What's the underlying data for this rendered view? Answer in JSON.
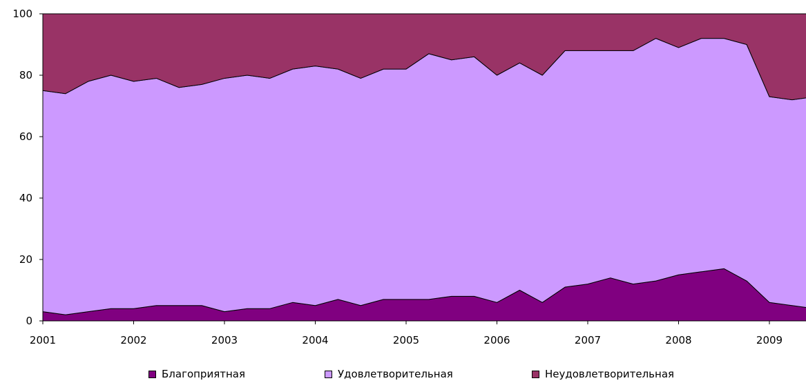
{
  "chart_data": {
    "type": "area",
    "stacked": true,
    "ylim": [
      0,
      100
    ],
    "y_ticks": [
      "0",
      "20",
      "40",
      "60",
      "80",
      "100"
    ],
    "x_ticks": [
      "2001",
      "2002",
      "2003",
      "2004",
      "2005",
      "2006",
      "2007",
      "2008",
      "2009"
    ],
    "points_per_year": 4,
    "x": [
      2001.0,
      2001.25,
      2001.5,
      2001.75,
      2002.0,
      2002.25,
      2002.5,
      2002.75,
      2003.0,
      2003.25,
      2003.5,
      2003.75,
      2004.0,
      2004.25,
      2004.5,
      2004.75,
      2005.0,
      2005.25,
      2005.5,
      2005.75,
      2006.0,
      2006.25,
      2006.5,
      2006.75,
      2007.0,
      2007.25,
      2007.5,
      2007.75,
      2008.0,
      2008.25,
      2008.5,
      2008.75,
      2009.0,
      2009.25,
      2009.5
    ],
    "series": [
      {
        "name": "Благоприятная",
        "color": "#800080",
        "values": [
          3,
          2,
          3,
          4,
          4,
          5,
          5,
          5,
          3,
          4,
          4,
          6,
          5,
          7,
          5,
          7,
          7,
          7,
          8,
          8,
          6,
          10,
          6,
          11,
          12,
          14,
          12,
          13,
          15,
          16,
          17,
          13,
          6,
          5,
          4
        ]
      },
      {
        "name": "Удовлетворительная",
        "color": "#cc99ff",
        "values": [
          72,
          72,
          75,
          76,
          74,
          74,
          71,
          72,
          76,
          76,
          75,
          76,
          78,
          75,
          74,
          75,
          75,
          80,
          77,
          78,
          74,
          74,
          74,
          77,
          76,
          74,
          76,
          79,
          74,
          76,
          75,
          77,
          67,
          67,
          69
        ]
      },
      {
        "name": "Неудовлетворительная",
        "color": "#993366",
        "values": [
          25,
          26,
          22,
          20,
          22,
          21,
          24,
          23,
          21,
          20,
          21,
          18,
          17,
          18,
          21,
          18,
          18,
          13,
          15,
          14,
          20,
          16,
          20,
          12,
          12,
          12,
          12,
          8,
          11,
          8,
          8,
          10,
          27,
          28,
          27
        ]
      }
    ],
    "legend_position": "bottom",
    "grid": false
  }
}
